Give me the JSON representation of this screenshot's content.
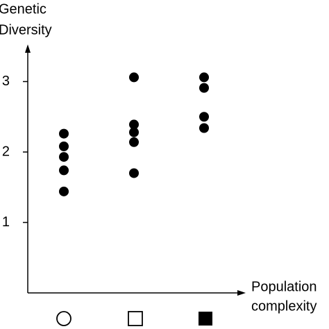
{
  "chart_data": {
    "type": "strip",
    "y_label": [
      "Genetic",
      "Diversity"
    ],
    "x_label": [
      "Population",
      "complexity"
    ],
    "categories": [
      null,
      null,
      null
    ],
    "values": [
      [
        2.26,
        2.08,
        1.93,
        1.74,
        1.44
      ],
      [
        3.06,
        2.39,
        2.28,
        2.14,
        1.7
      ],
      [
        3.06,
        2.91,
        2.5,
        2.34
      ]
    ],
    "color": "#000000",
    "ylim": [
      0,
      3.5
    ],
    "yticks": [
      1,
      2,
      3
    ],
    "grid": false
  }
}
